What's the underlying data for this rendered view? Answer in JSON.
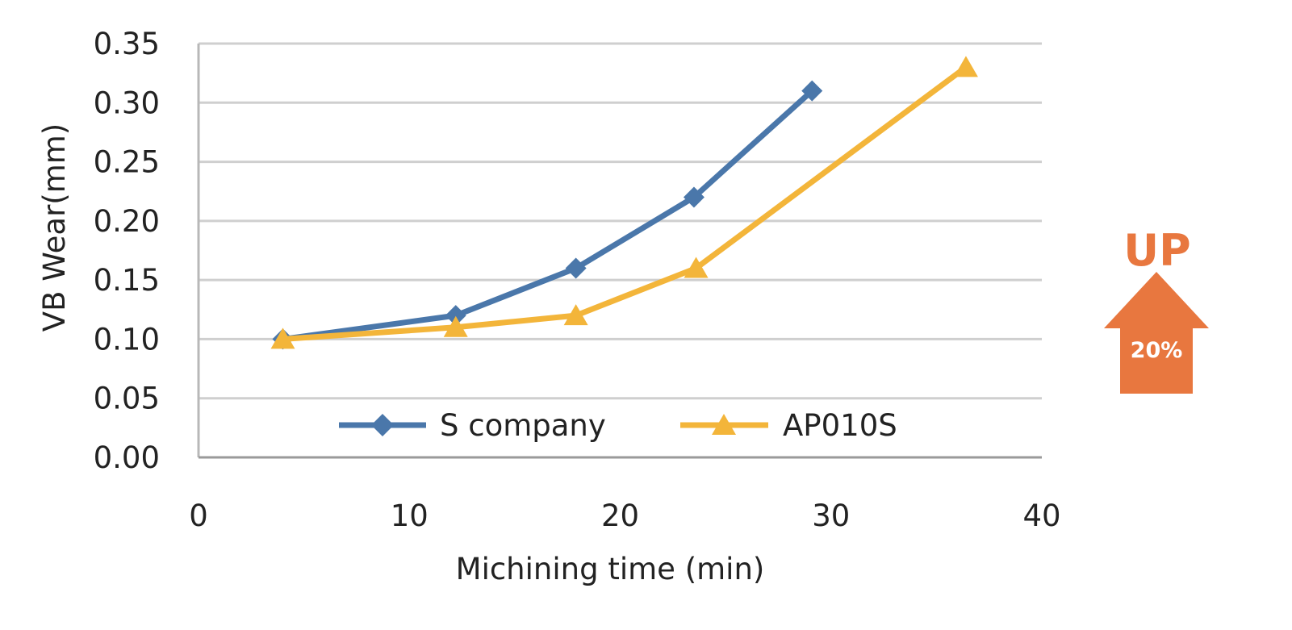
{
  "chart_data": {
    "type": "line",
    "xlabel": "Michining time (min)",
    "ylabel": "VB Wear(mm)",
    "xlim": [
      0,
      40
    ],
    "ylim": [
      0,
      0.35
    ],
    "x_ticks": [
      "0",
      "10",
      "20",
      "30",
      "40"
    ],
    "y_ticks": [
      "0.00",
      "0.05",
      "0.10",
      "0.15",
      "0.20",
      "0.25",
      "0.30",
      "0.35"
    ],
    "grid": "horizontal",
    "legend_position": "bottom-inside",
    "series": [
      {
        "name": "S company",
        "color": "#4a77aa",
        "marker": "diamond",
        "x": [
          4,
          12.2,
          17.9,
          23.5,
          29.1
        ],
        "y": [
          0.1,
          0.12,
          0.16,
          0.22,
          0.31
        ]
      },
      {
        "name": "AP010S",
        "color": "#f3b53a",
        "marker": "triangle",
        "x": [
          4,
          12.2,
          17.9,
          23.6,
          36.4
        ],
        "y": [
          0.1,
          0.11,
          0.12,
          0.16,
          0.33
        ]
      }
    ]
  },
  "annotation": {
    "label": "UP",
    "value": "20%",
    "icon": "arrow-up-icon",
    "color": "#e8773f"
  }
}
